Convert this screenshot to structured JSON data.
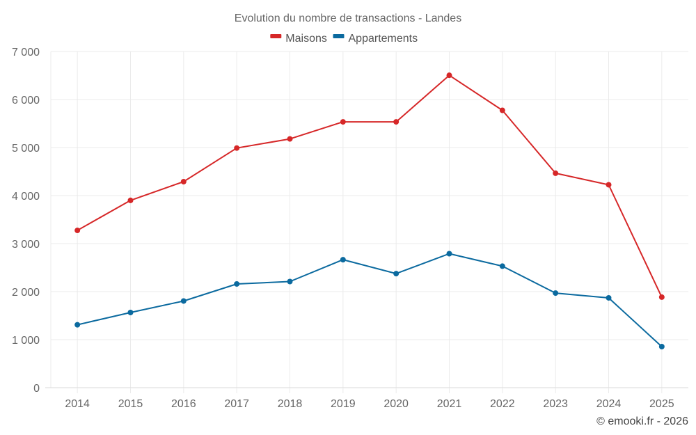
{
  "chart_data": {
    "type": "line",
    "title": "Evolution du nombre de transactions - Landes",
    "xlabel": "",
    "ylabel": "",
    "categories": [
      "2014",
      "2015",
      "2016",
      "2017",
      "2018",
      "2019",
      "2020",
      "2021",
      "2022",
      "2023",
      "2024",
      "2025"
    ],
    "series": [
      {
        "name": "Maisons",
        "color": "#d62728",
        "values": [
          3275,
          3900,
          4290,
          4990,
          5180,
          5535,
          5535,
          6505,
          5775,
          4465,
          4225,
          1885
        ]
      },
      {
        "name": "Appartements",
        "color": "#0b6a9f",
        "values": [
          1310,
          1565,
          1805,
          2160,
          2210,
          2665,
          2375,
          2790,
          2530,
          1970,
          1870,
          855
        ]
      }
    ],
    "ylim": [
      0,
      7000
    ],
    "yticks": [
      0,
      1000,
      2000,
      3000,
      4000,
      5000,
      6000,
      7000
    ],
    "ytick_labels": [
      "0",
      "1 000",
      "2 000",
      "3 000",
      "4 000",
      "5 000",
      "6 000",
      "7 000"
    ],
    "grid": true,
    "legend": "top-center"
  },
  "credit": "© emooki.fr - 2026"
}
